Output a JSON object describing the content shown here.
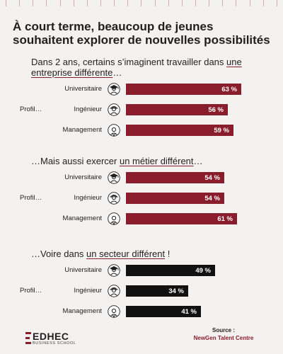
{
  "headline": {
    "line1": "À court terme, beaucoup de jeunes",
    "line2": "souhaitent explorer de nouvelles possibilités"
  },
  "chart_data": [
    {
      "type": "bar",
      "title_prefix": "Dans 2 ans, certains s’imaginent travailler dans ",
      "title_emphasis": "une entreprise différente",
      "title_suffix": "…",
      "group_label": "Profil…",
      "categories": [
        "Universitaire",
        "Ingénieur",
        "Management"
      ],
      "values": [
        63,
        56,
        59
      ],
      "value_labels": [
        "63 %",
        "56 %",
        "59 %"
      ],
      "unit": "%",
      "color": "#8a1d2c"
    },
    {
      "type": "bar",
      "title_prefix": "…Mais aussi exercer ",
      "title_emphasis": "un métier différent",
      "title_suffix": "…",
      "group_label": "Profil…",
      "categories": [
        "Universitaire",
        "Ingénieur",
        "Management"
      ],
      "values": [
        54,
        54,
        61
      ],
      "value_labels": [
        "54 %",
        "54 %",
        "61 %"
      ],
      "unit": "%",
      "color": "#8a1d2c"
    },
    {
      "type": "bar",
      "title_prefix": "…Voire dans ",
      "title_emphasis": "un secteur différent",
      "title_suffix": " !",
      "group_label": "Profil…",
      "categories": [
        "Universitaire",
        "Ingénieur",
        "Management"
      ],
      "values": [
        49,
        34,
        41
      ],
      "value_labels": [
        "49 %",
        "34 %",
        "41 %"
      ],
      "unit": "%",
      "color": "#111111"
    }
  ],
  "avatars": [
    "graduate-icon",
    "engineer-icon",
    "manager-icon"
  ],
  "source": {
    "label": "Source :",
    "value": "NewGen Talent Centre"
  },
  "logo": {
    "name": "EDHEC",
    "sub": "BUSINESS SCHOOL",
    "color": "#8a1d2c"
  }
}
